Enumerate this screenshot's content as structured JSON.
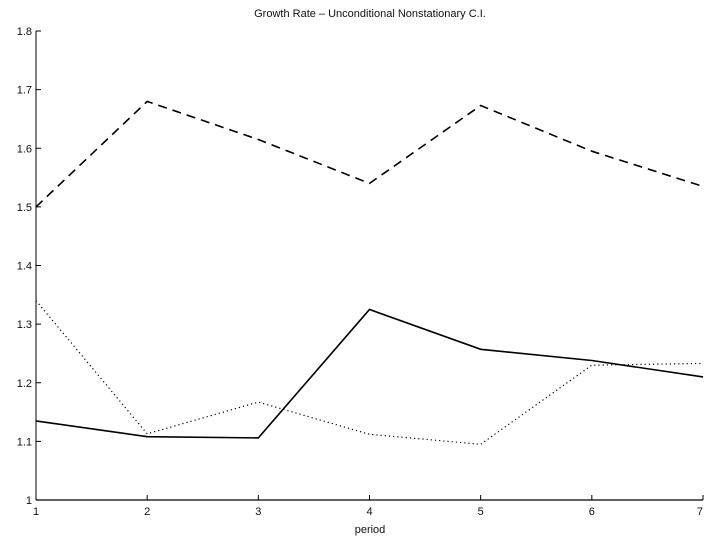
{
  "chart_data": {
    "type": "line",
    "title": "Growth Rate – Unconditional Nonstationary C.I.",
    "xlabel": "period",
    "ylabel": "",
    "xlim": [
      1,
      7
    ],
    "ylim": [
      1,
      1.8
    ],
    "xticks": [
      "1",
      "2",
      "3",
      "4",
      "5",
      "6",
      "7"
    ],
    "yticks": [
      "1",
      "1.1",
      "1.2",
      "1.3",
      "1.4",
      "1.5",
      "1.6",
      "1.7",
      "1.8"
    ],
    "grid": false,
    "legend": "none",
    "x": [
      1,
      2,
      3,
      4,
      5,
      6,
      7
    ],
    "series": [
      {
        "style": "dashed",
        "color": "#000000",
        "values": [
          1.5,
          1.68,
          1.615,
          1.54,
          1.673,
          1.595,
          1.535
        ]
      },
      {
        "style": "solid",
        "color": "#000000",
        "values": [
          1.135,
          1.108,
          1.106,
          1.325,
          1.257,
          1.238,
          1.21
        ]
      },
      {
        "style": "dotted",
        "color": "#000000",
        "values": [
          1.34,
          1.113,
          1.167,
          1.112,
          1.095,
          1.23,
          1.233
        ]
      }
    ]
  }
}
